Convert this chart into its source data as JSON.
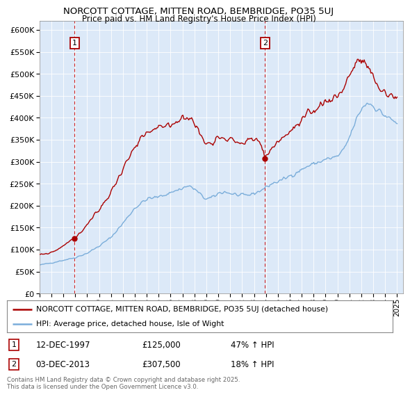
{
  "title": "NORCOTT COTTAGE, MITTEN ROAD, BEMBRIDGE, PO35 5UJ",
  "subtitle": "Price paid vs. HM Land Registry's House Price Index (HPI)",
  "legend_line1": "NORCOTT COTTAGE, MITTEN ROAD, BEMBRIDGE, PO35 5UJ (detached house)",
  "legend_line2": "HPI: Average price, detached house, Isle of Wight",
  "annotation1_date": "12-DEC-1997",
  "annotation1_price": "£125,000",
  "annotation1_hpi": "47% ↑ HPI",
  "annotation2_date": "03-DEC-2013",
  "annotation2_price": "£307,500",
  "annotation2_hpi": "18% ↑ HPI",
  "footer": "Contains HM Land Registry data © Crown copyright and database right 2025.\nThis data is licensed under the Open Government Licence v3.0.",
  "ylim": [
    0,
    620000
  ],
  "yticks": [
    0,
    50000,
    100000,
    150000,
    200000,
    250000,
    300000,
    350000,
    400000,
    450000,
    500000,
    550000,
    600000
  ],
  "background_color": "#dce9f8",
  "red_line_color": "#aa0000",
  "blue_line_color": "#7aadda",
  "vline_color": "#cc0000",
  "sale1_x": 1997.95,
  "sale1_y": 125000,
  "sale2_x": 2013.92,
  "sale2_y": 307500,
  "xmin": 1995.0,
  "xmax": 2025.5,
  "hpi_waypoints": [
    [
      1995.0,
      65000
    ],
    [
      1996.0,
      70000
    ],
    [
      1997.0,
      76000
    ],
    [
      1998.0,
      82000
    ],
    [
      1999.0,
      92000
    ],
    [
      2000.0,
      108000
    ],
    [
      2001.0,
      128000
    ],
    [
      2002.0,
      160000
    ],
    [
      2003.0,
      195000
    ],
    [
      2004.0,
      215000
    ],
    [
      2005.0,
      220000
    ],
    [
      2006.0,
      230000
    ],
    [
      2007.0,
      240000
    ],
    [
      2007.5,
      245000
    ],
    [
      2008.0,
      238000
    ],
    [
      2008.5,
      225000
    ],
    [
      2009.0,
      215000
    ],
    [
      2009.5,
      218000
    ],
    [
      2010.0,
      228000
    ],
    [
      2010.5,
      232000
    ],
    [
      2011.0,
      228000
    ],
    [
      2011.5,
      225000
    ],
    [
      2012.0,
      222000
    ],
    [
      2012.5,
      224000
    ],
    [
      2013.0,
      228000
    ],
    [
      2013.5,
      234000
    ],
    [
      2014.0,
      242000
    ],
    [
      2014.5,
      250000
    ],
    [
      2015.0,
      255000
    ],
    [
      2015.5,
      260000
    ],
    [
      2016.0,
      268000
    ],
    [
      2016.5,
      275000
    ],
    [
      2017.0,
      282000
    ],
    [
      2017.5,
      290000
    ],
    [
      2018.0,
      295000
    ],
    [
      2018.5,
      300000
    ],
    [
      2019.0,
      305000
    ],
    [
      2019.5,
      308000
    ],
    [
      2020.0,
      312000
    ],
    [
      2020.5,
      325000
    ],
    [
      2021.0,
      355000
    ],
    [
      2021.5,
      390000
    ],
    [
      2022.0,
      420000
    ],
    [
      2022.5,
      435000
    ],
    [
      2023.0,
      428000
    ],
    [
      2023.5,
      415000
    ],
    [
      2024.0,
      405000
    ],
    [
      2024.5,
      395000
    ],
    [
      2025.0,
      388000
    ]
  ],
  "red_waypoints": [
    [
      1995.0,
      88000
    ],
    [
      1995.5,
      90000
    ],
    [
      1996.0,
      94000
    ],
    [
      1996.5,
      100000
    ],
    [
      1997.0,
      110000
    ],
    [
      1997.95,
      125000
    ],
    [
      1998.5,
      140000
    ],
    [
      1999.0,
      158000
    ],
    [
      2000.0,
      190000
    ],
    [
      2001.0,
      230000
    ],
    [
      2002.0,
      285000
    ],
    [
      2003.0,
      330000
    ],
    [
      2004.0,
      365000
    ],
    [
      2005.0,
      375000
    ],
    [
      2006.0,
      385000
    ],
    [
      2007.0,
      400000
    ],
    [
      2007.3,
      405000
    ],
    [
      2007.7,
      398000
    ],
    [
      2008.0,
      385000
    ],
    [
      2008.3,
      375000
    ],
    [
      2008.6,
      355000
    ],
    [
      2009.0,
      340000
    ],
    [
      2009.3,
      345000
    ],
    [
      2009.6,
      350000
    ],
    [
      2010.0,
      355000
    ],
    [
      2010.3,
      360000
    ],
    [
      2010.6,
      355000
    ],
    [
      2011.0,
      350000
    ],
    [
      2011.3,
      348000
    ],
    [
      2011.6,
      345000
    ],
    [
      2012.0,
      342000
    ],
    [
      2012.3,
      345000
    ],
    [
      2012.6,
      348000
    ],
    [
      2013.0,
      350000
    ],
    [
      2013.5,
      345000
    ],
    [
      2013.92,
      307500
    ],
    [
      2014.0,
      315000
    ],
    [
      2014.3,
      325000
    ],
    [
      2014.6,
      335000
    ],
    [
      2015.0,
      345000
    ],
    [
      2015.5,
      358000
    ],
    [
      2016.0,
      368000
    ],
    [
      2016.5,
      378000
    ],
    [
      2017.0,
      390000
    ],
    [
      2017.5,
      405000
    ],
    [
      2018.0,
      415000
    ],
    [
      2018.5,
      428000
    ],
    [
      2019.0,
      438000
    ],
    [
      2019.5,
      445000
    ],
    [
      2020.0,
      450000
    ],
    [
      2020.5,
      468000
    ],
    [
      2021.0,
      498000
    ],
    [
      2021.5,
      520000
    ],
    [
      2022.0,
      530000
    ],
    [
      2022.3,
      525000
    ],
    [
      2022.6,
      510000
    ],
    [
      2023.0,
      490000
    ],
    [
      2023.3,
      475000
    ],
    [
      2023.6,
      465000
    ],
    [
      2024.0,
      458000
    ],
    [
      2024.3,
      452000
    ],
    [
      2024.6,
      448000
    ],
    [
      2025.0,
      450000
    ]
  ]
}
